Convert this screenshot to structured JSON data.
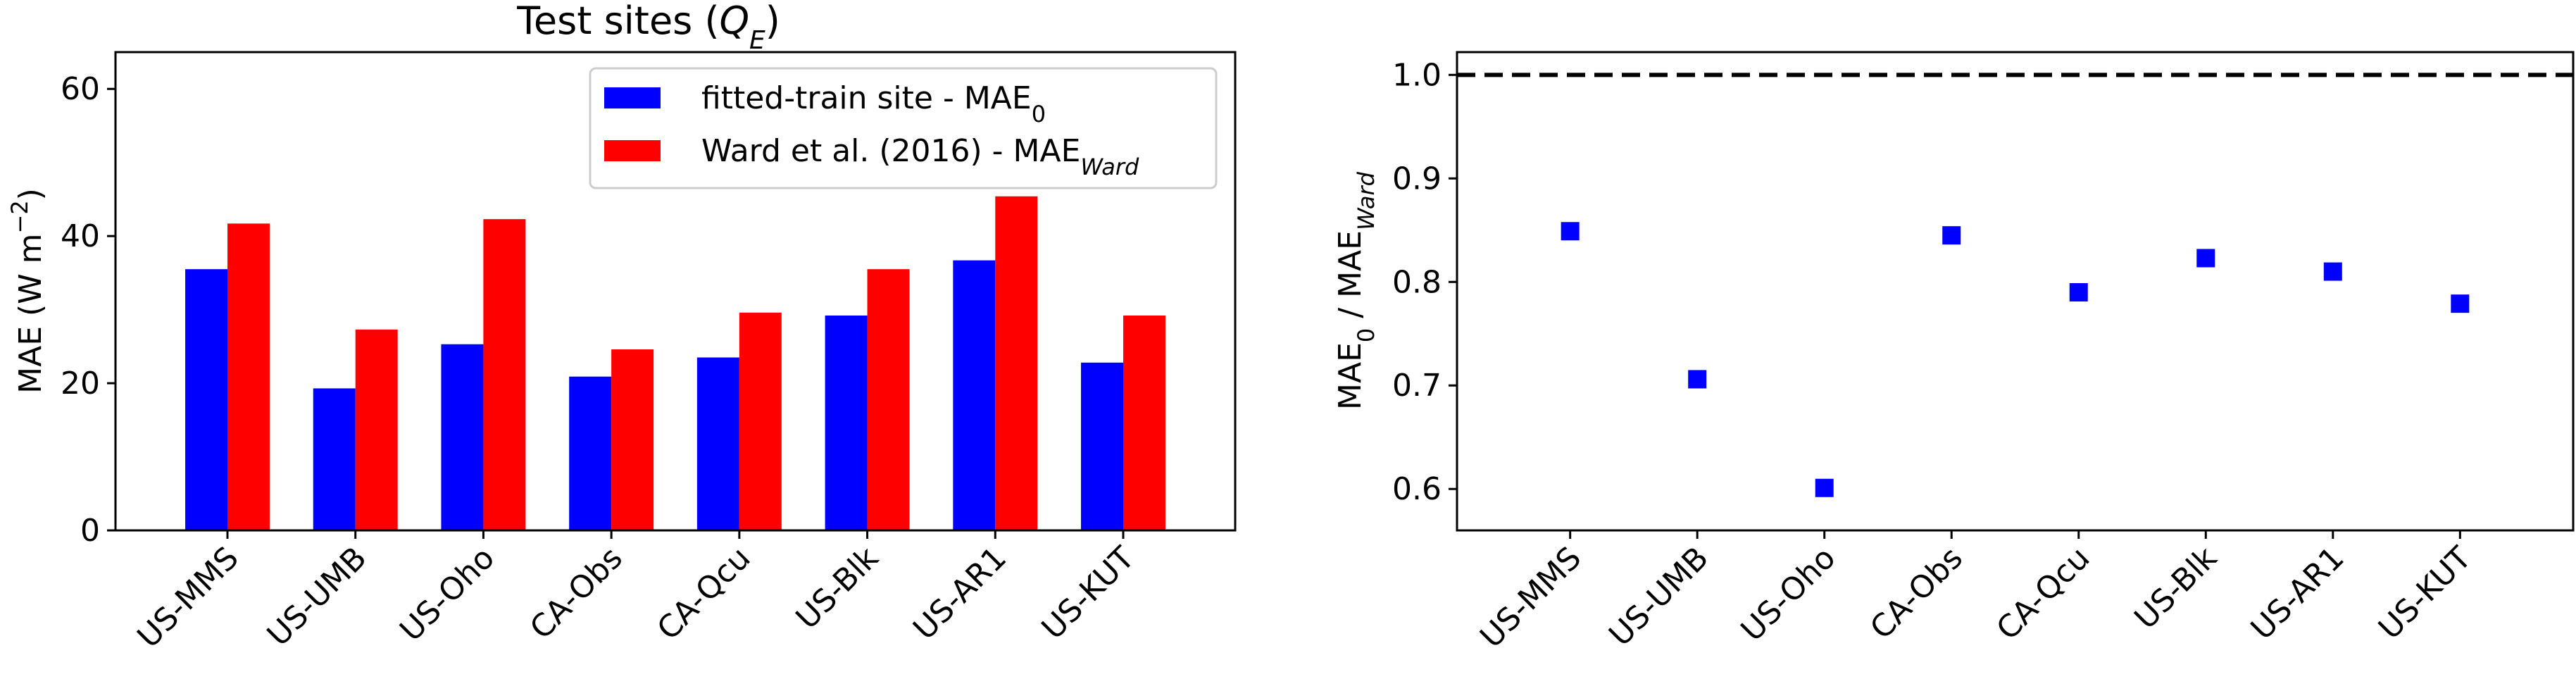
{
  "chart_data": [
    {
      "type": "bar",
      "title_main": "Test sites (",
      "title_italic": "Q",
      "title_sub": "E",
      "title_end": ")",
      "ylabel": "MAE (W m",
      "ylabel_sup": "−2",
      "ylabel_end": ")",
      "ylim": [
        0,
        65
      ],
      "yticks": [
        "0",
        "20",
        "40",
        "60"
      ],
      "categories": [
        "US-MMS",
        "US-UMB",
        "US-Oho",
        "CA-Obs",
        "CA-Qcu",
        "US-Blk",
        "US-AR1",
        "US-KUT"
      ],
      "series": [
        {
          "name": "fitted-train site - MAE",
          "name_sub": "0",
          "color": "#0000ff",
          "values": [
            35.5,
            19.3,
            25.3,
            20.9,
            23.5,
            29.2,
            36.7,
            22.8
          ]
        },
        {
          "name": "Ward et al. (2016) - MAE",
          "name_sub": "Ward",
          "color": "#ff0000",
          "values": [
            41.7,
            27.3,
            42.3,
            24.6,
            29.6,
            35.5,
            45.4,
            29.2
          ]
        }
      ],
      "legend_position": "upper-right"
    },
    {
      "type": "scatter",
      "ylabel_a": "MAE",
      "ylabel_a_sub": "0",
      "ylabel_b": " / MAE",
      "ylabel_b_sub": "Ward",
      "ylim": [
        0.56,
        1.022
      ],
      "yticks": [
        "0.6",
        "0.7",
        "0.8",
        "0.9",
        "1.0"
      ],
      "categories": [
        "US-MMS",
        "US-UMB",
        "US-Oho",
        "CA-Obs",
        "CA-Qcu",
        "US-Blk",
        "US-AR1",
        "US-KUT"
      ],
      "values": [
        0.849,
        0.706,
        0.601,
        0.845,
        0.79,
        0.823,
        0.81,
        0.779
      ],
      "marker_color": "#0000ff",
      "reference_line": 1.0
    }
  ]
}
